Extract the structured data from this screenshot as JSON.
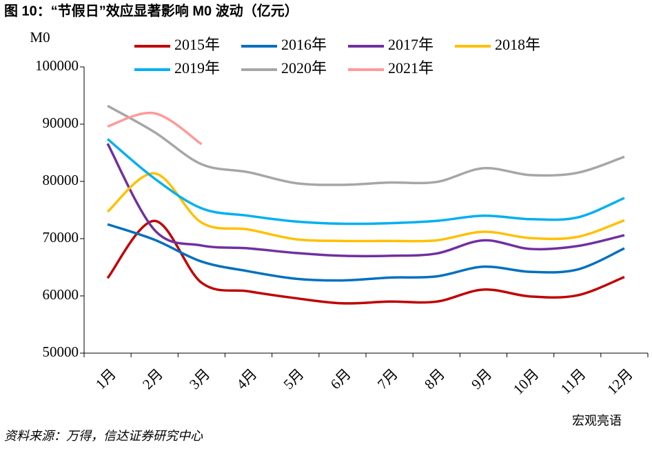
{
  "chart_data": {
    "type": "line",
    "title": "图 10：“节假日”效应显著影响 M0 波动（亿元）",
    "y_label": "M0",
    "source": "资料来源：万得，信达证券研究中心",
    "watermark": "宏观亮语",
    "categories": [
      "1月",
      "2月",
      "3月",
      "4月",
      "5月",
      "6月",
      "7月",
      "8月",
      "9月",
      "10月",
      "11月",
      "12月"
    ],
    "ylim": [
      50000,
      100000
    ],
    "yticks": [
      50000,
      60000,
      70000,
      80000,
      90000,
      100000
    ],
    "series": [
      {
        "name": "2015年",
        "color": "#c00000",
        "values": [
          63100,
          73100,
          62300,
          60800,
          59600,
          58700,
          59000,
          59000,
          61100,
          59900,
          60100,
          63300
        ]
      },
      {
        "name": "2016年",
        "color": "#0070c0",
        "values": [
          72500,
          69800,
          66000,
          64300,
          63000,
          62700,
          63200,
          63400,
          65100,
          64200,
          64600,
          68300
        ]
      },
      {
        "name": "2017年",
        "color": "#7030a0",
        "values": [
          86600,
          71500,
          68800,
          68300,
          67500,
          67000,
          67000,
          67400,
          69700,
          68200,
          68700,
          70600
        ]
      },
      {
        "name": "2018年",
        "color": "#ffc000",
        "values": [
          74700,
          81400,
          72800,
          71600,
          69900,
          69600,
          69600,
          69700,
          71200,
          70100,
          70300,
          73200
        ]
      },
      {
        "name": "2019年",
        "color": "#00b0f0",
        "values": [
          87400,
          80500,
          75300,
          74000,
          73000,
          72600,
          72700,
          73100,
          74000,
          73400,
          73700,
          77100
        ]
      },
      {
        "name": "2020年",
        "color": "#a6a6a6",
        "values": [
          93200,
          88600,
          83000,
          81600,
          79700,
          79400,
          79800,
          79900,
          82300,
          81100,
          81500,
          84300
        ]
      },
      {
        "name": "2021年",
        "color": "#ff9999",
        "values": [
          89600,
          91900,
          86500,
          null,
          null,
          null,
          null,
          null,
          null,
          null,
          null,
          null
        ]
      }
    ]
  }
}
